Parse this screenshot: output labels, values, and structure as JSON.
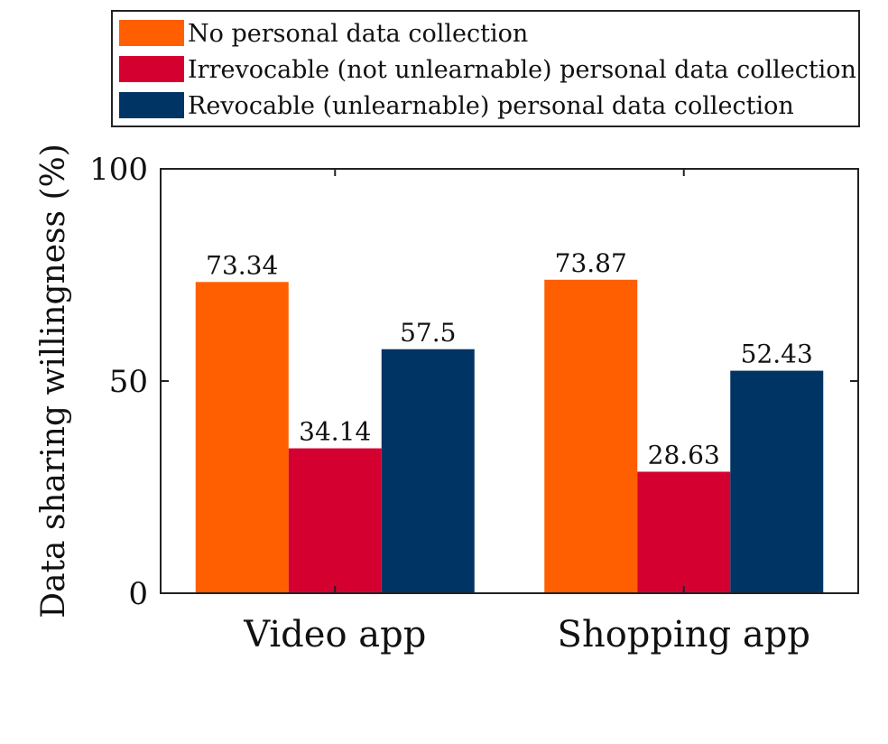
{
  "chart_data": {
    "type": "bar",
    "categories": [
      "Video app",
      "Shopping app"
    ],
    "series": [
      {
        "name": "No personal data collection",
        "color": "#ff5f00",
        "values": [
          73.34,
          73.87
        ]
      },
      {
        "name": "Irrevocable (not unlearnable) personal data collection",
        "color": "#d4002f",
        "values": [
          34.14,
          28.63
        ]
      },
      {
        "name": "Revocable (unlearnable) personal data collection",
        "color": "#003464",
        "values": [
          57.5,
          52.43
        ]
      }
    ],
    "data_labels": [
      [
        "73.34",
        "73.87"
      ],
      [
        "34.14",
        "28.63"
      ],
      [
        "57.5",
        "52.43"
      ]
    ],
    "ylabel": "Data sharing willingness (%)",
    "xlabel": "",
    "ylim": [
      0,
      100
    ],
    "yticks": [
      0,
      50,
      100
    ],
    "ytick_labels": [
      "0",
      "50",
      "100"
    ],
    "legend_position": "top",
    "grid": false
  }
}
